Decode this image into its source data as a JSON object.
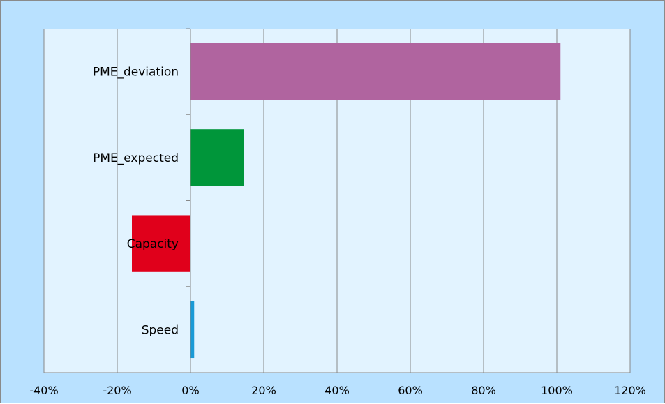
{
  "chart_data": {
    "type": "bar",
    "orientation": "horizontal",
    "categories": [
      "PME_deviation",
      "PME_expected",
      "Capacity",
      "Speed"
    ],
    "values": [
      101,
      14.5,
      -16,
      1
    ],
    "value_format": "percent",
    "xlim": [
      -40,
      120
    ],
    "xticks": [
      -40,
      -20,
      0,
      20,
      40,
      60,
      80,
      100,
      120
    ],
    "xtick_labels": [
      "-40%",
      "-20%",
      "0%",
      "20%",
      "40%",
      "60%",
      "80%",
      "100%",
      "120%"
    ],
    "bar_colors": [
      "#b0649f",
      "#00963a",
      "#e0001b",
      "#1a9ad6"
    ],
    "grid": "vertical",
    "colors": {
      "chart_background": "#b9e1ff",
      "plot_background": "#e2f3ff",
      "gridline": "#888888"
    }
  }
}
